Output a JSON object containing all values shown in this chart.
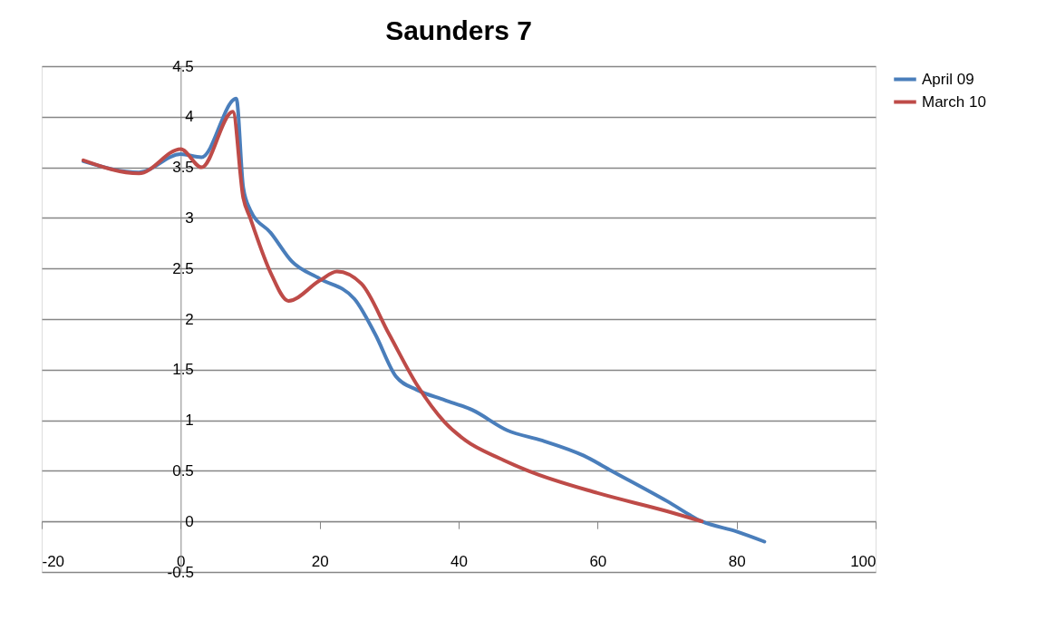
{
  "chart_data": {
    "type": "line",
    "title": "Saunders 7",
    "xlim": [
      -20,
      100
    ],
    "xticks": [
      -20,
      0,
      20,
      40,
      60,
      80,
      100
    ],
    "ylim": [
      -0.5,
      4.5
    ],
    "yticks": [
      -0.5,
      0,
      0.5,
      1,
      1.5,
      2,
      2.5,
      3,
      3.5,
      4,
      4.5
    ],
    "grid": "y",
    "legend": "right",
    "marker": "none",
    "line_style": "solid",
    "series": [
      {
        "name": "April 09",
        "color": "#4a7ebb",
        "x": [
          -14,
          -6,
          0,
          3,
          8,
          9,
          10,
          13,
          16,
          20,
          25,
          28,
          31,
          34,
          38,
          42,
          47,
          52,
          58,
          62,
          70,
          75,
          80,
          84
        ],
        "values": [
          3.56,
          3.45,
          3.63,
          3.6,
          4.18,
          3.3,
          3.08,
          2.85,
          2.57,
          2.4,
          2.2,
          1.85,
          1.43,
          1.3,
          1.2,
          1.1,
          0.9,
          0.8,
          0.65,
          0.5,
          0.2,
          0.0,
          -0.1,
          -0.2
        ]
      },
      {
        "name": "March 10",
        "color": "#be4b48",
        "x": [
          -14,
          -6,
          0,
          3,
          7.5,
          9,
          10,
          13,
          15.5,
          20,
          22.5,
          26,
          30,
          34,
          38,
          41,
          46,
          50,
          60,
          70,
          75
        ],
        "values": [
          3.57,
          3.44,
          3.68,
          3.5,
          4.05,
          3.2,
          3.0,
          2.45,
          2.18,
          2.38,
          2.47,
          2.35,
          1.85,
          1.35,
          0.98,
          0.8,
          0.62,
          0.5,
          0.28,
          0.1,
          0.0
        ]
      }
    ]
  }
}
